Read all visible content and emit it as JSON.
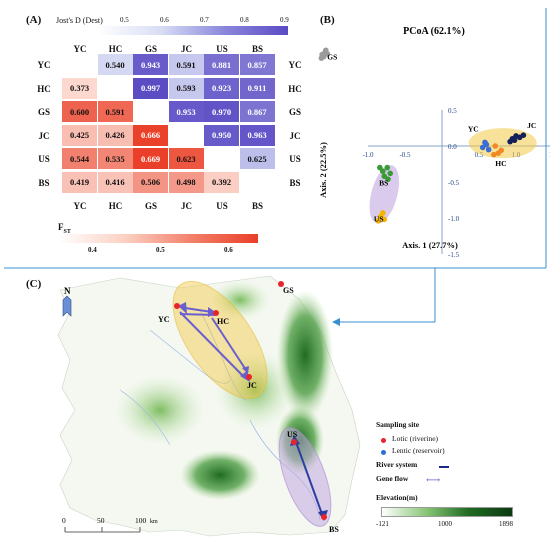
{
  "panelA": {
    "label": "(A)",
    "jost_title": "Jost's D (Dest)",
    "jost_ticks": [
      "0.5",
      "0.6",
      "0.7",
      "0.8",
      "0.9"
    ],
    "fst_title": "F",
    "fst_sub": "ST",
    "fst_ticks": [
      "0.4",
      "0.5",
      "0.6"
    ],
    "colors": {
      "jost_low": "#dfe4f6",
      "jost_high": "#5a4bc4",
      "fst_low": "#fde4dc",
      "fst_high": "#ea3f28"
    },
    "populations": [
      "YC",
      "HC",
      "GS",
      "JC",
      "US",
      "BS"
    ],
    "upper": [
      [
        null,
        "0.540",
        "0.943",
        "0.591",
        "0.881",
        "0.857"
      ],
      [
        null,
        null,
        "0.997",
        "0.593",
        "0.923",
        "0.911"
      ],
      [
        null,
        null,
        null,
        "0.953",
        "0.970",
        "0.867"
      ],
      [
        null,
        null,
        null,
        null,
        "0.950",
        "0.963"
      ],
      [
        null,
        null,
        null,
        null,
        null,
        "0.625"
      ]
    ],
    "lower": [
      [
        "0.373"
      ],
      [
        "0.600",
        "0.591"
      ],
      [
        "0.425",
        "0.426",
        "0.666"
      ],
      [
        "0.544",
        "0.535",
        "0.669",
        "0.623"
      ],
      [
        "0.419",
        "0.416",
        "0.506",
        "0.498",
        "0.392"
      ]
    ]
  },
  "panelB": {
    "label": "(B)",
    "title": "PCoA (62.1%)",
    "x_label": "Axis. 1 (27.7%)",
    "y_label": "Axis. 2 (22.5%)",
    "x_ticks": [
      "-1.0",
      "-0.5",
      "0.5",
      "1.0",
      "1.5"
    ],
    "y_ticks": [
      "0.5",
      "0.0",
      "-0.5",
      "-1.0",
      "-1.5"
    ],
    "groups": [
      "GS",
      "YC",
      "JC",
      "HC",
      "BS",
      "US"
    ]
  },
  "chart_data": {
    "type": "scatter",
    "title": "PCoA (62.1%)",
    "xlabel": "Axis. 1 (27.7%)",
    "ylabel": "Axis. 2 (22.5%)",
    "xlim": [
      -1.0,
      1.5
    ],
    "ylim": [
      -1.5,
      0.5
    ],
    "series": [
      {
        "name": "GS",
        "color": "#9a9a9a",
        "points": [
          [
            -1.62,
            1.27
          ],
          [
            -1.58,
            1.3
          ],
          [
            -1.6,
            1.24
          ],
          [
            -1.55,
            1.28
          ],
          [
            -1.63,
            1.22
          ],
          [
            -1.57,
            1.33
          ]
        ]
      },
      {
        "name": "YC",
        "color": "#3a6fd0",
        "points": [
          [
            0.55,
            -0.02
          ],
          [
            0.6,
            0.02
          ],
          [
            0.63,
            -0.05
          ],
          [
            0.58,
            0.05
          ]
        ]
      },
      {
        "name": "JC",
        "color": "#14205a",
        "points": [
          [
            0.95,
            0.1
          ],
          [
            1.0,
            0.14
          ],
          [
            1.05,
            0.12
          ],
          [
            1.1,
            0.15
          ],
          [
            0.92,
            0.06
          ],
          [
            0.98,
            0.08
          ]
        ]
      },
      {
        "name": "HC",
        "color": "#f08a24",
        "points": [
          [
            0.7,
            -0.12
          ],
          [
            0.76,
            -0.1
          ],
          [
            0.8,
            -0.06
          ],
          [
            0.72,
            0.0
          ]
        ]
      },
      {
        "name": "BS",
        "color": "#3a9a35",
        "points": [
          [
            -0.8,
            -0.35
          ],
          [
            -0.74,
            -0.3
          ],
          [
            -0.78,
            -0.42
          ],
          [
            -0.7,
            -0.38
          ],
          [
            -0.84,
            -0.3
          ],
          [
            -0.73,
            -0.46
          ]
        ]
      },
      {
        "name": "US",
        "color": "#f4b400",
        "points": [
          [
            -0.83,
            -0.98
          ],
          [
            -0.78,
            -1.02
          ],
          [
            -0.8,
            -0.93
          ],
          [
            -0.86,
            -1.04
          ]
        ]
      }
    ]
  },
  "panelC": {
    "label": "(C)",
    "north": "N",
    "sites": [
      "GS",
      "YC",
      "HC",
      "JC",
      "US",
      "BS"
    ],
    "legend": {
      "sampling_title": "Sampling site",
      "lotic": "Lotic (riverine)",
      "lentic": "Lentic (reservoir)",
      "river": "River system",
      "gene_flow": "Gene flow",
      "elevation_title": "Elevation(m)",
      "elev_min": "-121",
      "elev_mid": "1000",
      "elev_max": "1898",
      "lotic_color": "#e8242c",
      "lentic_color": "#2a6fd6",
      "river_color": "#1a2a8a",
      "gene_flow_color": "#6b5fcf"
    },
    "scale": {
      "t0": "0",
      "t1": "50",
      "t2": "100",
      "unit": "km"
    }
  }
}
